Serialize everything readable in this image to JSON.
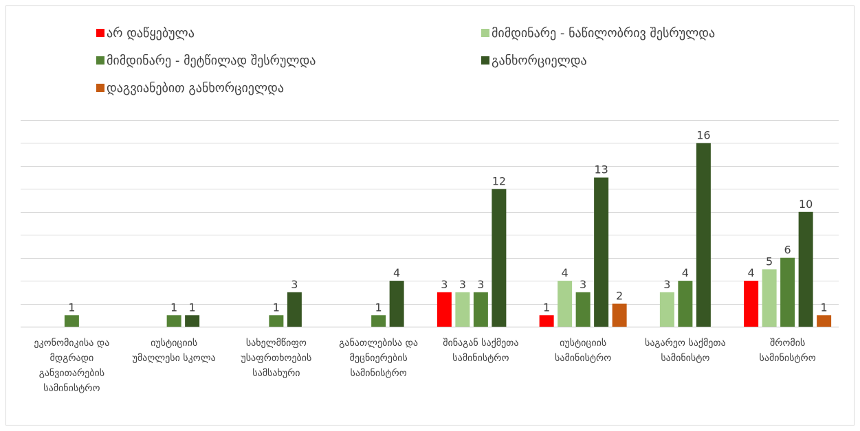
{
  "chart_data": {
    "type": "bar",
    "categories": [
      "ეკონომიკისა და მდგრადი განვითარების სამინისტრო",
      "იუსტიციის უმაღლესი სკოლა",
      "სახელმწიფო უსაფრთხოების სამსახური",
      "განათლებისა და მეცნიერების სამინისტრო",
      "შინაგან საქმეთა სამინისტრო",
      "იუსტიციის სამინისტრო",
      "საგარეო საქმეთა სამინისტო",
      "შრომის სამინისტრო"
    ],
    "series": [
      {
        "name": "არ დაწყებულა",
        "color": "#ff0000",
        "values": [
          null,
          null,
          null,
          null,
          3,
          1,
          null,
          4
        ]
      },
      {
        "name": "მიმდინარე - ნაწილობრივ შესრულდა",
        "color": "#a9d18e",
        "values": [
          null,
          null,
          null,
          null,
          3,
          4,
          3,
          5
        ]
      },
      {
        "name": "მიმდინარე - მეტწილად შესრულდა",
        "color": "#548235",
        "values": [
          1,
          1,
          1,
          1,
          3,
          3,
          4,
          6
        ]
      },
      {
        "name": "განხორციელდა",
        "color": "#375623",
        "values": [
          null,
          1,
          3,
          4,
          12,
          13,
          16,
          10
        ]
      },
      {
        "name": "დაგვიანებით განხორციელდა",
        "color": "#c55a11",
        "values": [
          null,
          null,
          null,
          null,
          null,
          2,
          null,
          1
        ]
      }
    ],
    "ylim": [
      0,
      18
    ],
    "yticks": [
      0,
      2,
      4,
      6,
      8,
      10,
      12,
      14,
      16,
      18
    ],
    "grid": true,
    "legend": "top"
  }
}
